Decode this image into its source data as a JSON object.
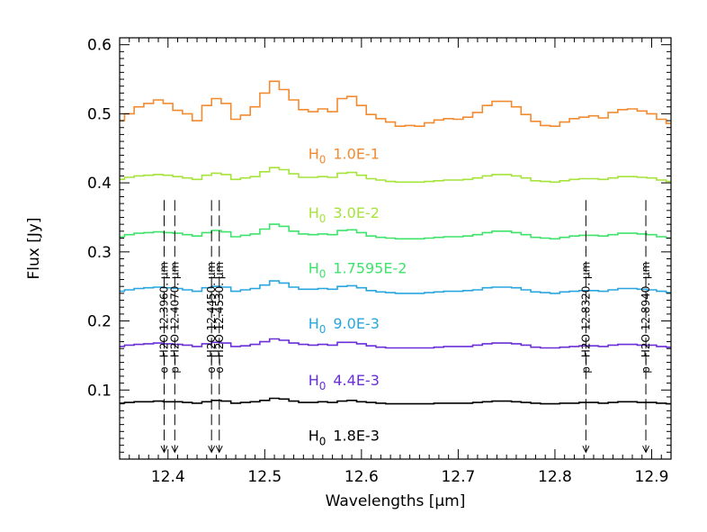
{
  "chart_data": {
    "type": "line",
    "xlabel": "Wavelengths [μm]",
    "ylabel": "Flux [Jy]",
    "xlim": [
      12.35,
      12.92
    ],
    "ylim": [
      0.0,
      0.61
    ],
    "x_ticks": [
      12.4,
      12.5,
      12.6,
      12.7,
      12.8,
      12.9
    ],
    "x_tick_labels": [
      "12.4",
      "12.5",
      "12.6",
      "12.7",
      "12.8",
      "12.9"
    ],
    "y_ticks": [
      0.1,
      0.2,
      0.3,
      0.4,
      0.5,
      0.6
    ],
    "y_tick_labels": [
      "0.1",
      "0.2",
      "0.3",
      "0.4",
      "0.5",
      "0.6"
    ],
    "x": [
      12.35,
      12.36,
      12.37,
      12.38,
      12.39,
      12.4,
      12.41,
      12.42,
      12.43,
      12.44,
      12.45,
      12.46,
      12.47,
      12.48,
      12.49,
      12.5,
      12.51,
      12.52,
      12.53,
      12.54,
      12.55,
      12.56,
      12.57,
      12.58,
      12.59,
      12.6,
      12.61,
      12.62,
      12.63,
      12.64,
      12.65,
      12.66,
      12.67,
      12.68,
      12.69,
      12.7,
      12.71,
      12.72,
      12.73,
      12.74,
      12.75,
      12.76,
      12.77,
      12.78,
      12.79,
      12.8,
      12.81,
      12.82,
      12.83,
      12.84,
      12.85,
      12.86,
      12.87,
      12.88,
      12.89,
      12.9,
      12.91,
      12.92
    ],
    "series": [
      {
        "prefix": "H",
        "sub": "0",
        "name": "1.0E-1",
        "color": "#f28a30",
        "values": [
          0.49,
          0.5,
          0.51,
          0.515,
          0.52,
          0.515,
          0.505,
          0.5,
          0.49,
          0.512,
          0.522,
          0.515,
          0.492,
          0.498,
          0.51,
          0.53,
          0.547,
          0.535,
          0.52,
          0.506,
          0.503,
          0.507,
          0.503,
          0.522,
          0.525,
          0.512,
          0.499,
          0.493,
          0.488,
          0.482,
          0.483,
          0.482,
          0.487,
          0.491,
          0.493,
          0.492,
          0.495,
          0.502,
          0.512,
          0.518,
          0.518,
          0.51,
          0.499,
          0.489,
          0.483,
          0.482,
          0.488,
          0.493,
          0.495,
          0.497,
          0.494,
          0.502,
          0.506,
          0.507,
          0.504,
          0.5,
          0.492,
          0.486
        ]
      },
      {
        "prefix": "H",
        "sub": "0",
        "name": "3.0E-2",
        "color": "#a6e33b",
        "values": [
          0.405,
          0.408,
          0.41,
          0.411,
          0.412,
          0.411,
          0.409,
          0.407,
          0.405,
          0.411,
          0.414,
          0.412,
          0.405,
          0.407,
          0.409,
          0.416,
          0.422,
          0.419,
          0.413,
          0.408,
          0.408,
          0.409,
          0.408,
          0.414,
          0.415,
          0.411,
          0.406,
          0.404,
          0.402,
          0.401,
          0.401,
          0.401,
          0.402,
          0.403,
          0.404,
          0.404,
          0.405,
          0.407,
          0.41,
          0.412,
          0.412,
          0.41,
          0.407,
          0.403,
          0.402,
          0.401,
          0.403,
          0.405,
          0.406,
          0.406,
          0.405,
          0.407,
          0.409,
          0.409,
          0.408,
          0.407,
          0.404,
          0.402
        ]
      },
      {
        "prefix": "H",
        "sub": "0",
        "name": "1.7595E-2",
        "color": "#3fe36b",
        "values": [
          0.322,
          0.325,
          0.327,
          0.328,
          0.329,
          0.328,
          0.327,
          0.325,
          0.323,
          0.328,
          0.331,
          0.329,
          0.322,
          0.324,
          0.326,
          0.333,
          0.34,
          0.337,
          0.33,
          0.326,
          0.325,
          0.326,
          0.325,
          0.331,
          0.332,
          0.328,
          0.323,
          0.321,
          0.32,
          0.319,
          0.319,
          0.319,
          0.32,
          0.321,
          0.322,
          0.322,
          0.323,
          0.325,
          0.328,
          0.33,
          0.33,
          0.328,
          0.325,
          0.321,
          0.32,
          0.319,
          0.321,
          0.323,
          0.324,
          0.324,
          0.323,
          0.325,
          0.327,
          0.327,
          0.326,
          0.325,
          0.322,
          0.32
        ]
      },
      {
        "prefix": "H",
        "sub": "0",
        "name": "9.0E-3",
        "color": "#29a6e0",
        "values": [
          0.243,
          0.245,
          0.247,
          0.248,
          0.249,
          0.248,
          0.247,
          0.245,
          0.243,
          0.248,
          0.25,
          0.249,
          0.243,
          0.245,
          0.247,
          0.252,
          0.258,
          0.255,
          0.249,
          0.246,
          0.246,
          0.247,
          0.246,
          0.25,
          0.251,
          0.248,
          0.244,
          0.242,
          0.241,
          0.24,
          0.24,
          0.24,
          0.241,
          0.242,
          0.243,
          0.243,
          0.244,
          0.245,
          0.248,
          0.249,
          0.249,
          0.248,
          0.245,
          0.242,
          0.241,
          0.24,
          0.242,
          0.243,
          0.244,
          0.244,
          0.243,
          0.245,
          0.247,
          0.247,
          0.246,
          0.245,
          0.243,
          0.241
        ]
      },
      {
        "prefix": "H",
        "sub": "0",
        "name": "4.4E-3",
        "color": "#6a2fd8",
        "values": [
          0.163,
          0.165,
          0.166,
          0.167,
          0.168,
          0.167,
          0.166,
          0.165,
          0.163,
          0.167,
          0.169,
          0.168,
          0.163,
          0.164,
          0.166,
          0.17,
          0.174,
          0.172,
          0.168,
          0.166,
          0.165,
          0.166,
          0.165,
          0.169,
          0.169,
          0.167,
          0.164,
          0.162,
          0.161,
          0.161,
          0.161,
          0.161,
          0.161,
          0.162,
          0.163,
          0.163,
          0.163,
          0.165,
          0.167,
          0.168,
          0.168,
          0.167,
          0.165,
          0.162,
          0.161,
          0.161,
          0.162,
          0.163,
          0.164,
          0.164,
          0.163,
          0.165,
          0.166,
          0.166,
          0.165,
          0.165,
          0.163,
          0.162
        ]
      },
      {
        "prefix": "H",
        "sub": "0",
        "name": "1.8E-3",
        "color": "#000000",
        "values": [
          0.081,
          0.082,
          0.083,
          0.083,
          0.084,
          0.083,
          0.083,
          0.082,
          0.081,
          0.083,
          0.085,
          0.084,
          0.081,
          0.082,
          0.083,
          0.085,
          0.088,
          0.087,
          0.084,
          0.082,
          0.082,
          0.083,
          0.082,
          0.084,
          0.085,
          0.083,
          0.082,
          0.081,
          0.08,
          0.08,
          0.08,
          0.08,
          0.08,
          0.081,
          0.081,
          0.081,
          0.081,
          0.082,
          0.083,
          0.084,
          0.084,
          0.083,
          0.082,
          0.081,
          0.08,
          0.08,
          0.081,
          0.081,
          0.082,
          0.082,
          0.081,
          0.082,
          0.083,
          0.083,
          0.082,
          0.082,
          0.081,
          0.08
        ]
      }
    ],
    "series_label_y": [
      0.435,
      0.349,
      0.269,
      0.189,
      0.107,
      0.027
    ],
    "series_label_x": 12.545,
    "line_markers": [
      {
        "x": 12.396,
        "label": "o−H2O 12.3960. μm"
      },
      {
        "x": 12.407,
        "label": "p−H2O 12.4070. μm"
      },
      {
        "x": 12.445,
        "label": "o−H2O 12.4450. μm"
      },
      {
        "x": 12.453,
        "label": "o−H2O 12.4530. μm"
      },
      {
        "x": 12.832,
        "label": "p−H2O 12.8320. μm"
      },
      {
        "x": 12.894,
        "label": "p−H2O 12.8940. μm"
      }
    ],
    "line_marker_range": [
      0.01,
      0.375
    ],
    "grid": false,
    "legend": "none"
  }
}
